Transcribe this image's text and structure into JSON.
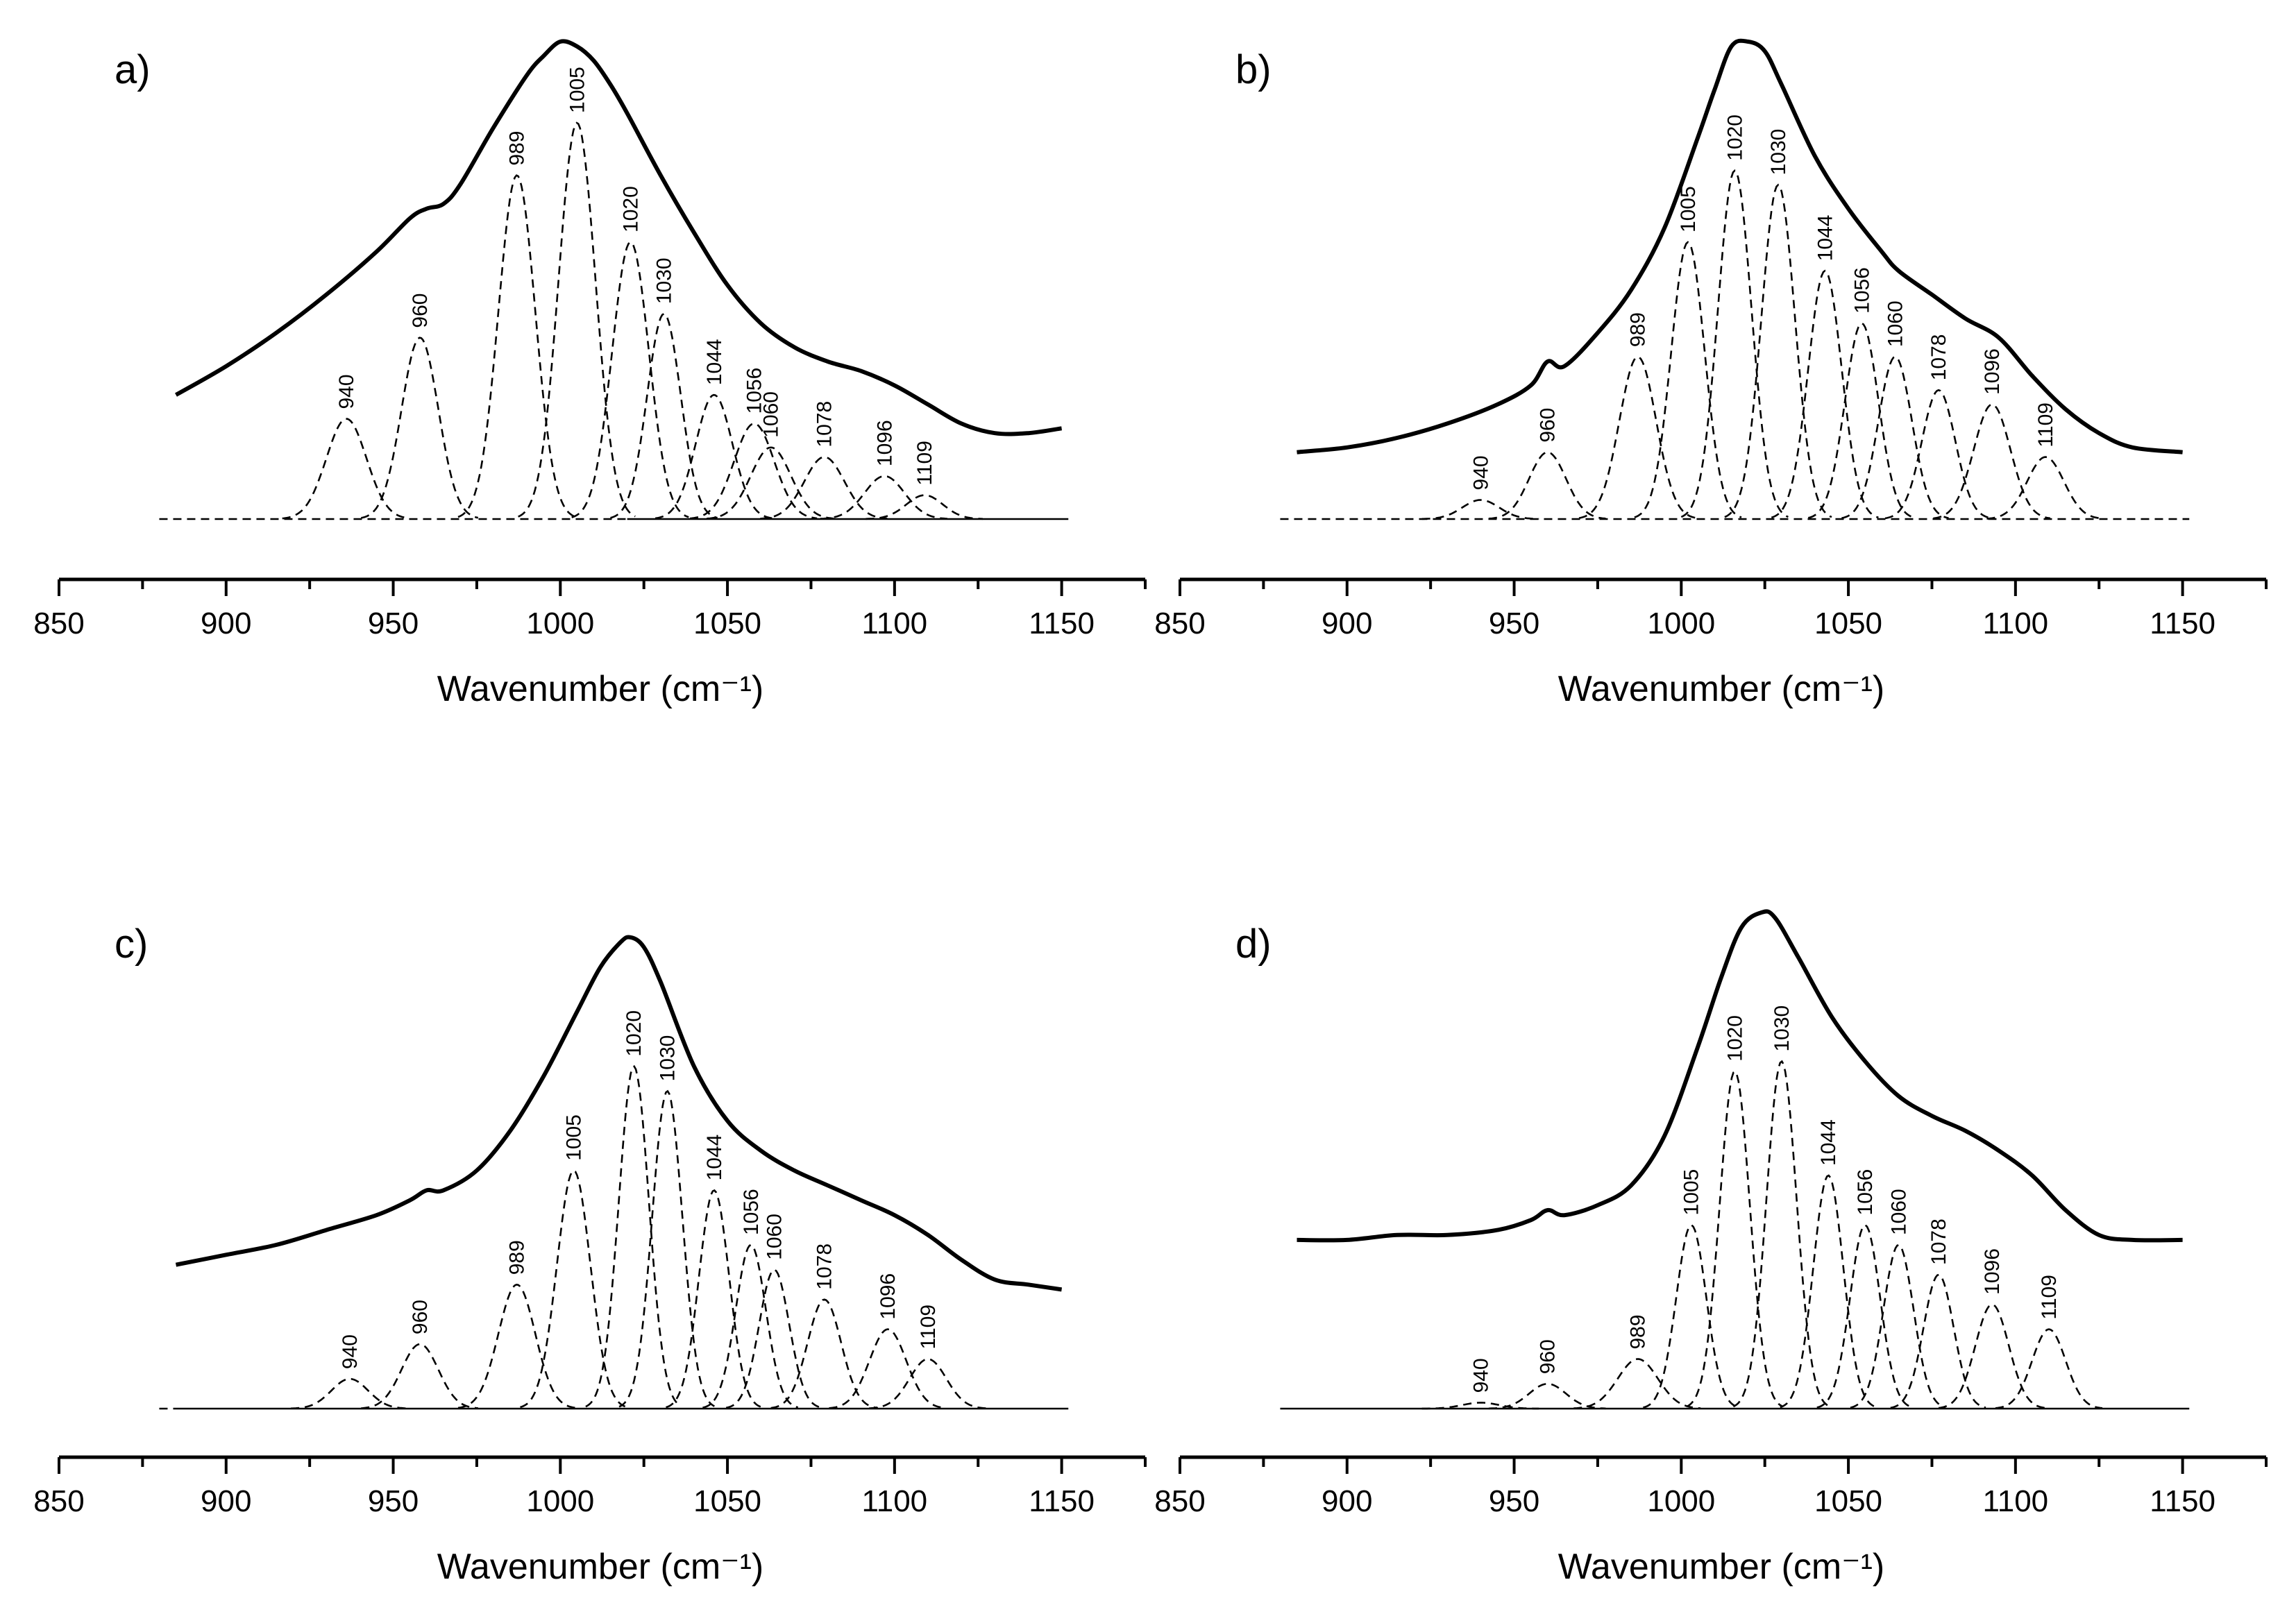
{
  "chart_data": [
    {
      "panel": "a)",
      "type": "line",
      "xlabel": "Wavenumber (cm⁻¹)",
      "xlim": [
        850,
        1175
      ],
      "xticks": [
        850,
        900,
        950,
        1000,
        1050,
        1100,
        1150
      ],
      "ylim": [
        0,
        1
      ],
      "envelope": {
        "x": [
          885,
          900,
          915,
          930,
          945,
          955,
          960,
          965,
          970,
          980,
          990,
          995,
          1000,
          1005,
          1010,
          1015,
          1020,
          1030,
          1040,
          1050,
          1060,
          1070,
          1080,
          1090,
          1100,
          1110,
          1120,
          1130,
          1140,
          1150
        ],
        "y": [
          0.26,
          0.32,
          0.39,
          0.47,
          0.56,
          0.63,
          0.65,
          0.66,
          0.7,
          0.82,
          0.93,
          0.97,
          1.0,
          0.99,
          0.96,
          0.91,
          0.85,
          0.72,
          0.6,
          0.49,
          0.41,
          0.36,
          0.33,
          0.31,
          0.28,
          0.24,
          0.2,
          0.18,
          0.18,
          0.19
        ]
      },
      "baseline_dashed_until": 1020,
      "peaks": [
        {
          "label": "940",
          "center": 936,
          "height": 0.21,
          "width": 6.0
        },
        {
          "label": "960",
          "center": 958,
          "height": 0.38,
          "width": 5.5
        },
        {
          "label": "989",
          "center": 987,
          "height": 0.72,
          "width": 5.5
        },
        {
          "label": "1005",
          "center": 1005,
          "height": 0.83,
          "width": 5.5
        },
        {
          "label": "1020",
          "center": 1021,
          "height": 0.58,
          "width": 5.5
        },
        {
          "label": "1030",
          "center": 1031,
          "height": 0.43,
          "width": 5.0
        },
        {
          "label": "1044",
          "center": 1046,
          "height": 0.26,
          "width": 5.5
        },
        {
          "label": "1056",
          "center": 1058,
          "height": 0.2,
          "width": 6.0
        },
        {
          "label": "1060",
          "center": 1063,
          "height": 0.15,
          "width": 6.0
        },
        {
          "label": "1078",
          "center": 1079,
          "height": 0.13,
          "width": 6.0
        },
        {
          "label": "1096",
          "center": 1097,
          "height": 0.09,
          "width": 6.0
        },
        {
          "label": "1109",
          "center": 1109,
          "height": 0.05,
          "width": 5.5
        }
      ]
    },
    {
      "panel": "b)",
      "type": "line",
      "xlabel": "Wavenumber (cm⁻¹)",
      "xlim": [
        850,
        1175
      ],
      "xticks": [
        850,
        900,
        950,
        1000,
        1050,
        1100,
        1150
      ],
      "ylim": [
        0,
        1
      ],
      "envelope": {
        "x": [
          885,
          900,
          915,
          930,
          945,
          955,
          960,
          965,
          975,
          985,
          995,
          1005,
          1010,
          1015,
          1020,
          1025,
          1030,
          1040,
          1050,
          1060,
          1065,
          1075,
          1085,
          1095,
          1105,
          1115,
          1125,
          1135,
          1150
        ],
        "y": [
          0.14,
          0.15,
          0.17,
          0.2,
          0.24,
          0.28,
          0.33,
          0.32,
          0.39,
          0.48,
          0.61,
          0.8,
          0.9,
          0.99,
          1.0,
          0.98,
          0.91,
          0.76,
          0.65,
          0.56,
          0.52,
          0.47,
          0.42,
          0.38,
          0.3,
          0.23,
          0.18,
          0.15,
          0.14
        ]
      },
      "baseline_dashed_until": 1150,
      "peaks": [
        {
          "label": "940",
          "center": 940,
          "height": 0.04,
          "width": 5.5
        },
        {
          "label": "960",
          "center": 960,
          "height": 0.14,
          "width": 5.5
        },
        {
          "label": "989",
          "center": 987,
          "height": 0.34,
          "width": 5.5
        },
        {
          "label": "1005",
          "center": 1002,
          "height": 0.58,
          "width": 5.0
        },
        {
          "label": "1020",
          "center": 1016,
          "height": 0.73,
          "width": 5.0
        },
        {
          "label": "1030",
          "center": 1029,
          "height": 0.7,
          "width": 5.0
        },
        {
          "label": "1044",
          "center": 1043,
          "height": 0.52,
          "width": 5.0
        },
        {
          "label": "1056",
          "center": 1054,
          "height": 0.41,
          "width": 5.0
        },
        {
          "label": "1060",
          "center": 1064,
          "height": 0.34,
          "width": 5.0
        },
        {
          "label": "1078",
          "center": 1077,
          "height": 0.27,
          "width": 5.0
        },
        {
          "label": "1096",
          "center": 1093,
          "height": 0.24,
          "width": 5.5
        },
        {
          "label": "1109",
          "center": 1109,
          "height": 0.13,
          "width": 5.5
        }
      ]
    },
    {
      "panel": "c)",
      "type": "line",
      "xlabel": "Wavenumber (cm⁻¹)",
      "xlim": [
        850,
        1175
      ],
      "xticks": [
        850,
        900,
        950,
        1000,
        1050,
        1100,
        1150
      ],
      "ylim": [
        0,
        1
      ],
      "envelope": {
        "x": [
          885,
          900,
          915,
          930,
          945,
          955,
          960,
          965,
          975,
          985,
          995,
          1005,
          1012,
          1018,
          1021,
          1025,
          1030,
          1040,
          1050,
          1060,
          1070,
          1080,
          1090,
          1100,
          1110,
          1120,
          1130,
          1140,
          1150
        ],
        "y": [
          0.29,
          0.31,
          0.33,
          0.36,
          0.39,
          0.42,
          0.44,
          0.44,
          0.48,
          0.56,
          0.67,
          0.8,
          0.89,
          0.94,
          0.95,
          0.93,
          0.86,
          0.69,
          0.58,
          0.52,
          0.48,
          0.45,
          0.42,
          0.39,
          0.35,
          0.3,
          0.26,
          0.25,
          0.24
        ]
      },
      "baseline_dashed_until": 885,
      "peaks": [
        {
          "label": "940",
          "center": 937,
          "height": 0.06,
          "width": 5.5
        },
        {
          "label": "960",
          "center": 958,
          "height": 0.13,
          "width": 5.5
        },
        {
          "label": "989",
          "center": 987,
          "height": 0.25,
          "width": 5.5
        },
        {
          "label": "1005",
          "center": 1004,
          "height": 0.48,
          "width": 5.0
        },
        {
          "label": "1020",
          "center": 1022,
          "height": 0.69,
          "width": 4.5
        },
        {
          "label": "1030",
          "center": 1032,
          "height": 0.64,
          "width": 4.5
        },
        {
          "label": "1044",
          "center": 1046,
          "height": 0.44,
          "width": 4.5
        },
        {
          "label": "1056",
          "center": 1057,
          "height": 0.33,
          "width": 4.5
        },
        {
          "label": "1060",
          "center": 1064,
          "height": 0.28,
          "width": 4.5
        },
        {
          "label": "1078",
          "center": 1079,
          "height": 0.22,
          "width": 5.0
        },
        {
          "label": "1096",
          "center": 1098,
          "height": 0.16,
          "width": 5.5
        },
        {
          "label": "1109",
          "center": 1110,
          "height": 0.1,
          "width": 5.5
        }
      ]
    },
    {
      "panel": "d)",
      "type": "line",
      "xlabel": "Wavenumber (cm⁻¹)",
      "xlim": [
        850,
        1175
      ],
      "xticks": [
        850,
        900,
        950,
        1000,
        1050,
        1100,
        1150
      ],
      "ylim": [
        0,
        1
      ],
      "envelope": {
        "x": [
          885,
          900,
          915,
          930,
          945,
          955,
          960,
          965,
          975,
          985,
          995,
          1005,
          1012,
          1018,
          1024,
          1028,
          1035,
          1045,
          1055,
          1065,
          1075,
          1085,
          1095,
          1105,
          1115,
          1125,
          1135,
          1150
        ],
        "y": [
          0.34,
          0.34,
          0.35,
          0.35,
          0.36,
          0.38,
          0.4,
          0.39,
          0.41,
          0.45,
          0.55,
          0.73,
          0.87,
          0.97,
          1.0,
          0.99,
          0.91,
          0.79,
          0.7,
          0.63,
          0.59,
          0.56,
          0.52,
          0.47,
          0.4,
          0.35,
          0.34,
          0.34
        ]
      },
      "baseline_dashed_until": 878,
      "peaks": [
        {
          "label": "940",
          "center": 940,
          "height": 0.012,
          "width": 5.5
        },
        {
          "label": "960",
          "center": 960,
          "height": 0.05,
          "width": 5.5
        },
        {
          "label": "989",
          "center": 987,
          "height": 0.1,
          "width": 6.0
        },
        {
          "label": "1005",
          "center": 1003,
          "height": 0.37,
          "width": 4.5
        },
        {
          "label": "1020",
          "center": 1016,
          "height": 0.68,
          "width": 4.5
        },
        {
          "label": "1030",
          "center": 1030,
          "height": 0.7,
          "width": 4.5
        },
        {
          "label": "1044",
          "center": 1044,
          "height": 0.47,
          "width": 4.5
        },
        {
          "label": "1056",
          "center": 1055,
          "height": 0.37,
          "width": 4.5
        },
        {
          "label": "1060",
          "center": 1065,
          "height": 0.33,
          "width": 4.5
        },
        {
          "label": "1078",
          "center": 1077,
          "height": 0.27,
          "width": 4.5
        },
        {
          "label": "1096",
          "center": 1093,
          "height": 0.21,
          "width": 5.0
        },
        {
          "label": "1109",
          "center": 1110,
          "height": 0.16,
          "width": 5.0
        }
      ]
    }
  ]
}
